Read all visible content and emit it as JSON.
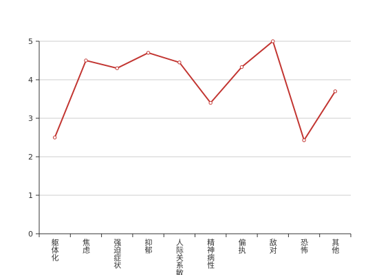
{
  "chart_data": {
    "type": "line",
    "categories": [
      "躯体化",
      "焦虑",
      "强迫症状",
      "抑郁",
      "人际关系敏感",
      "精神病性",
      "偏执",
      "敌对",
      "恐怖",
      "其他"
    ],
    "values": [
      2.5,
      4.5,
      4.3,
      4.7,
      4.45,
      3.4,
      4.33,
      5.0,
      2.43,
      3.7
    ],
    "color": "#c23531",
    "ylim": [
      0,
      5
    ],
    "yticks": [
      0,
      1,
      2,
      3,
      4,
      5
    ],
    "grid": true
  }
}
